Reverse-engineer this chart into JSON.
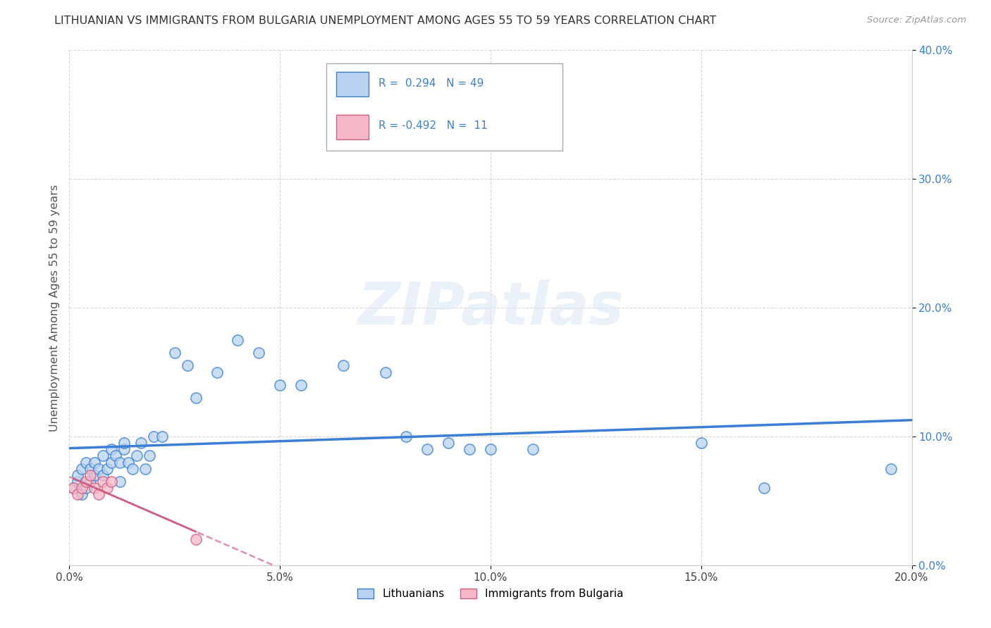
{
  "title": "LITHUANIAN VS IMMIGRANTS FROM BULGARIA UNEMPLOYMENT AMONG AGES 55 TO 59 YEARS CORRELATION CHART",
  "source": "Source: ZipAtlas.com",
  "ylabel": "Unemployment Among Ages 55 to 59 years",
  "xlim": [
    0.0,
    0.2
  ],
  "ylim": [
    0.0,
    0.4
  ],
  "xtick_labels": [
    "0.0%",
    "5.0%",
    "10.0%",
    "15.0%",
    "20.0%"
  ],
  "xtick_vals": [
    0.0,
    0.05,
    0.1,
    0.15,
    0.2
  ],
  "ytick_labels": [
    "0.0%",
    "10.0%",
    "20.0%",
    "30.0%",
    "40.0%"
  ],
  "ytick_vals": [
    0.0,
    0.1,
    0.2,
    0.3,
    0.4
  ],
  "legend_labels": [
    "Lithuanians",
    "Immigrants from Bulgaria"
  ],
  "R_lith": 0.294,
  "N_lith": 49,
  "R_bulg": -0.492,
  "N_bulg": 11,
  "lith_color": "#b8d4f0",
  "bulg_color": "#f8b8c8",
  "lith_line_color": "#3a7fd5",
  "bulg_line_color": "#d06080",
  "lith_x": [
    0.001,
    0.002,
    0.002,
    0.003,
    0.003,
    0.004,
    0.004,
    0.005,
    0.005,
    0.006,
    0.006,
    0.007,
    0.008,
    0.008,
    0.009,
    0.01,
    0.01,
    0.011,
    0.012,
    0.012,
    0.013,
    0.013,
    0.014,
    0.015,
    0.016,
    0.017,
    0.018,
    0.019,
    0.02,
    0.022,
    0.025,
    0.028,
    0.03,
    0.035,
    0.04,
    0.045,
    0.05,
    0.055,
    0.065,
    0.075,
    0.08,
    0.085,
    0.09,
    0.095,
    0.1,
    0.11,
    0.15,
    0.165,
    0.195
  ],
  "lith_y": [
    0.06,
    0.065,
    0.07,
    0.055,
    0.075,
    0.06,
    0.08,
    0.065,
    0.075,
    0.07,
    0.08,
    0.075,
    0.085,
    0.07,
    0.075,
    0.08,
    0.09,
    0.085,
    0.065,
    0.08,
    0.09,
    0.095,
    0.08,
    0.075,
    0.085,
    0.095,
    0.075,
    0.085,
    0.1,
    0.1,
    0.165,
    0.155,
    0.13,
    0.15,
    0.175,
    0.165,
    0.14,
    0.14,
    0.155,
    0.15,
    0.1,
    0.09,
    0.095,
    0.09,
    0.09,
    0.09,
    0.095,
    0.06,
    0.075
  ],
  "bulg_x": [
    0.001,
    0.002,
    0.003,
    0.004,
    0.005,
    0.006,
    0.007,
    0.008,
    0.009,
    0.01,
    0.03
  ],
  "bulg_y": [
    0.06,
    0.055,
    0.06,
    0.065,
    0.07,
    0.06,
    0.055,
    0.065,
    0.06,
    0.065,
    0.02
  ]
}
